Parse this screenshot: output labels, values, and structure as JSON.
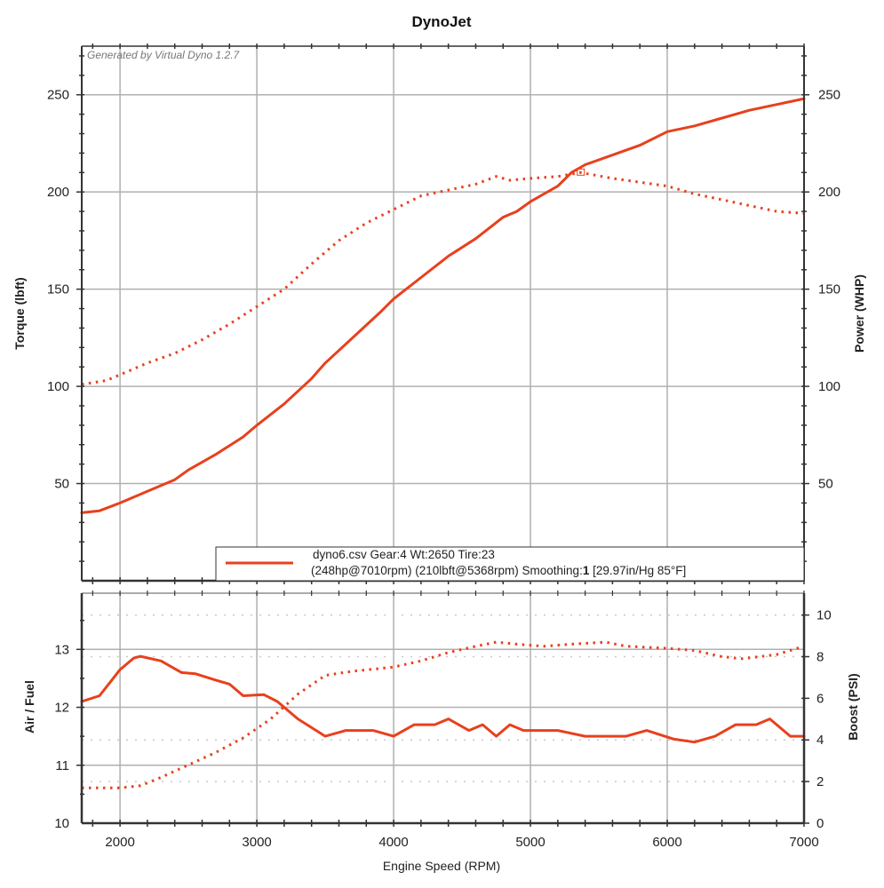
{
  "chart_data": [
    {
      "type": "line",
      "panel": "top",
      "title": "DynoJet",
      "watermark": "Generated by Virtual Dyno 1.2.7",
      "xlabel": "Engine Speed (RPM)",
      "xlim": [
        1720,
        7000
      ],
      "x_ticks": [
        2000,
        3000,
        4000,
        5000,
        6000,
        7000
      ],
      "ylabel_left": "Torque (lbft)",
      "ylabel_right": "Power (WHP)",
      "ylim": [
        0,
        275
      ],
      "y_ticks": [
        50,
        100,
        150,
        200,
        250
      ],
      "y_tick_labels": [
        "50",
        "100",
        "150",
        "200",
        "250"
      ],
      "grid": true,
      "legend": {
        "placement": "bottom-right",
        "line1": "dyno6.csv Gear:4 Wt:2650 Tire:23",
        "line2_prefix": "(248hp@7010rpm) (210lbft@5368rpm) Smoothing:",
        "line2_bold": "1",
        "line2_suffix": " [29.97in/Hg 85°F]"
      },
      "peak_marker": {
        "x": 5368,
        "y": 210,
        "label": "peak torque"
      },
      "series": [
        {
          "name": "Power (WHP)",
          "style": "solid",
          "color": "#e8401c",
          "x": [
            1720,
            1850,
            2000,
            2200,
            2400,
            2500,
            2700,
            2900,
            3000,
            3200,
            3400,
            3500,
            3700,
            3900,
            4000,
            4200,
            4400,
            4600,
            4800,
            4900,
            5000,
            5200,
            5300,
            5400,
            5600,
            5800,
            6000,
            6200,
            6400,
            6600,
            6800,
            7000
          ],
          "values": [
            35,
            36,
            40,
            46,
            52,
            57,
            65,
            74,
            80,
            91,
            104,
            112,
            125,
            138,
            145,
            156,
            167,
            176,
            187,
            190,
            195,
            203,
            210,
            214,
            219,
            224,
            231,
            234,
            238,
            242,
            245,
            248
          ]
        },
        {
          "name": "Torque (lbft)",
          "style": "dotted",
          "color": "#e8401c",
          "x": [
            1720,
            1900,
            2000,
            2200,
            2400,
            2600,
            2800,
            3000,
            3200,
            3400,
            3600,
            3800,
            4000,
            4200,
            4400,
            4600,
            4750,
            4850,
            5000,
            5200,
            5368,
            5600,
            5800,
            6000,
            6200,
            6400,
            6600,
            6800,
            7000
          ],
          "values": [
            101,
            103,
            106,
            112,
            117,
            124,
            132,
            141,
            150,
            163,
            175,
            184,
            191,
            198,
            201,
            204,
            208,
            206,
            207,
            208,
            210,
            207,
            205,
            203,
            199,
            196,
            193,
            190,
            189
          ]
        }
      ]
    },
    {
      "type": "line",
      "panel": "bottom",
      "xlabel": "Engine Speed (RPM)",
      "xlim": [
        1720,
        7000
      ],
      "x_ticks": [
        2000,
        3000,
        4000,
        5000,
        6000,
        7000
      ],
      "x_tick_labels": [
        "2000",
        "3000",
        "4000",
        "5000",
        "6000",
        "7000"
      ],
      "ylabel_left": "Air / Fuel",
      "ylim_left": [
        10,
        13.97
      ],
      "y_ticks_left": [
        10,
        11,
        12,
        13
      ],
      "y_tick_labels_left": [
        "10",
        "11",
        "12",
        "13"
      ],
      "ylabel_right": "Boost (PSI)",
      "ylim_right": [
        0,
        11.05
      ],
      "y_ticks_right": [
        0,
        2,
        4,
        6,
        8,
        10
      ],
      "y_tick_labels_right": [
        "0",
        "2",
        "4",
        "6",
        "8",
        "10"
      ],
      "grid": true,
      "series": [
        {
          "name": "Air / Fuel",
          "style": "solid",
          "axis": "left",
          "color": "#e8401c",
          "x": [
            1720,
            1850,
            2000,
            2100,
            2150,
            2300,
            2450,
            2550,
            2700,
            2800,
            2900,
            3050,
            3150,
            3300,
            3500,
            3650,
            3850,
            4000,
            4150,
            4300,
            4400,
            4550,
            4650,
            4750,
            4850,
            4950,
            5200,
            5400,
            5700,
            5850,
            6050,
            6200,
            6350,
            6500,
            6650,
            6750,
            6900,
            7000
          ],
          "values": [
            12.1,
            12.2,
            12.65,
            12.85,
            12.88,
            12.8,
            12.6,
            12.58,
            12.47,
            12.4,
            12.2,
            12.22,
            12.1,
            11.8,
            11.5,
            11.6,
            11.6,
            11.5,
            11.7,
            11.7,
            11.8,
            11.6,
            11.7,
            11.5,
            11.7,
            11.6,
            11.6,
            11.5,
            11.5,
            11.6,
            11.45,
            11.4,
            11.5,
            11.7,
            11.7,
            11.8,
            11.5,
            11.5
          ]
        },
        {
          "name": "Boost (PSI)",
          "style": "dotted",
          "axis": "right",
          "color": "#e8401c",
          "x": [
            1720,
            2000,
            2150,
            2300,
            2500,
            2700,
            2900,
            3100,
            3300,
            3500,
            3700,
            4000,
            4200,
            4400,
            4600,
            4750,
            4900,
            5100,
            5300,
            5550,
            5700,
            6000,
            6200,
            6400,
            6550,
            6800,
            7000
          ],
          "values": [
            1.7,
            1.7,
            1.8,
            2.2,
            2.8,
            3.4,
            4.1,
            5.0,
            6.2,
            7.1,
            7.3,
            7.5,
            7.8,
            8.2,
            8.5,
            8.7,
            8.6,
            8.5,
            8.6,
            8.7,
            8.5,
            8.4,
            8.3,
            8.0,
            7.9,
            8.1,
            8.5
          ]
        }
      ]
    }
  ],
  "colors": {
    "series": "#e8401c",
    "grid": "#b0b0b0",
    "axis": "#333333"
  }
}
